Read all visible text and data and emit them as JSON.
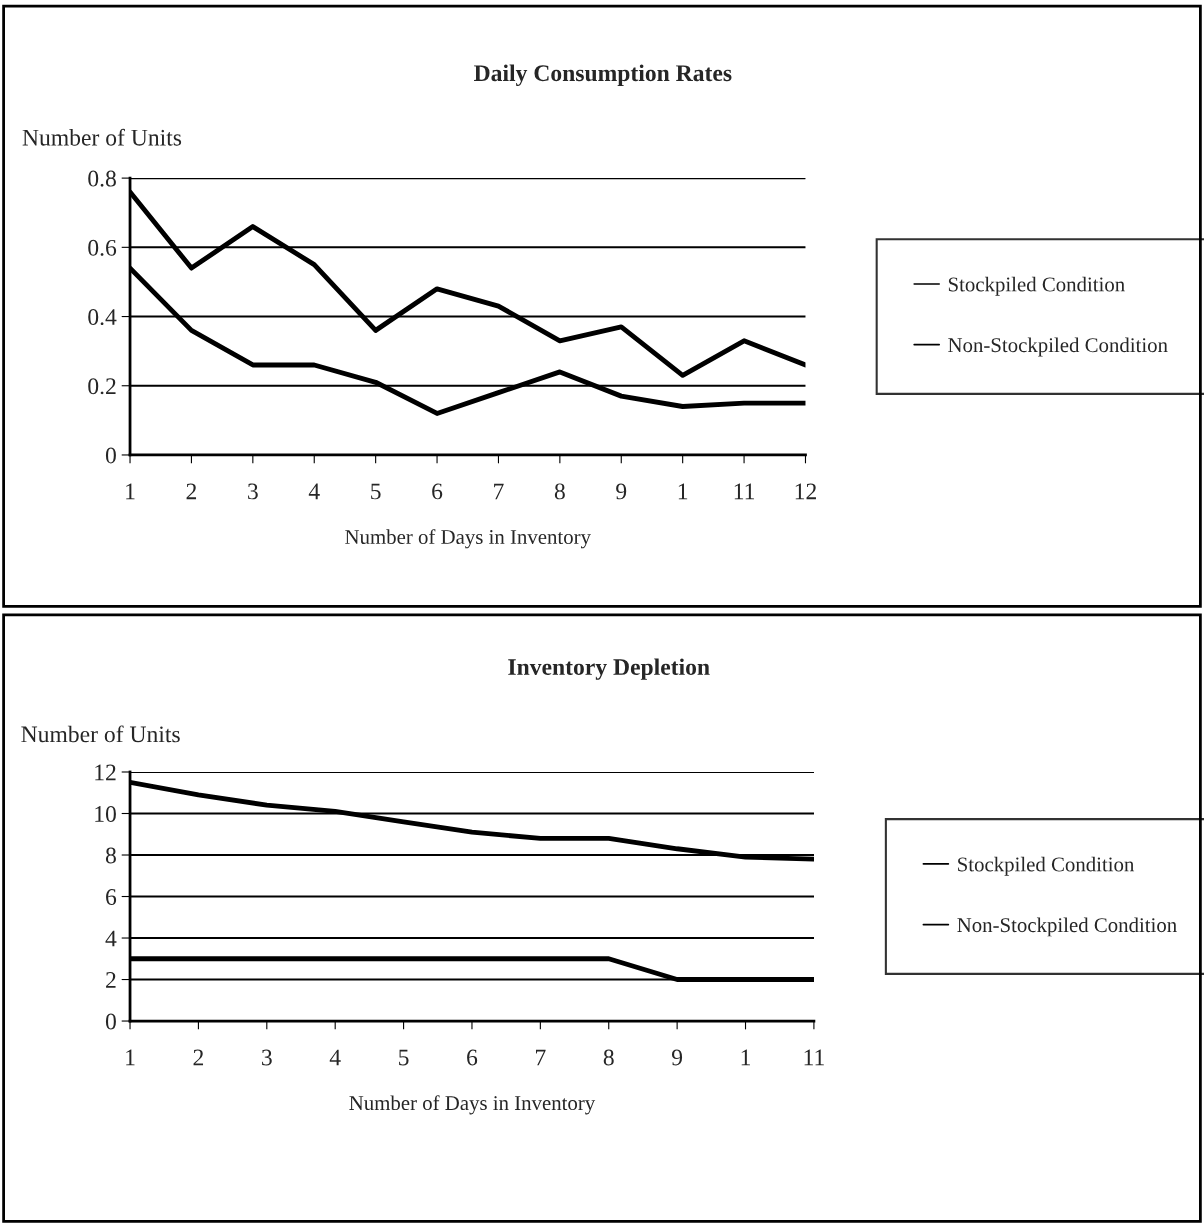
{
  "chart_data": [
    {
      "type": "line",
      "title": "Daily Consumption Rates",
      "ylabel": "Number of Units",
      "xlabel": "Number of Days in Inventory",
      "categories": [
        "1",
        "2",
        "3",
        "4",
        "5",
        "6",
        "7",
        "8",
        "9",
        "1",
        "11",
        "12"
      ],
      "series": [
        {
          "name": "Stockpiled Condition",
          "color": "#000000",
          "values": [
            0.76,
            0.54,
            0.66,
            0.55,
            0.36,
            0.48,
            0.43,
            0.33,
            0.37,
            0.23,
            0.33,
            0.26
          ]
        },
        {
          "name": "Non-Stockpiled Condition",
          "color": "#000000",
          "values": [
            0.54,
            0.36,
            0.26,
            0.26,
            0.21,
            0.12,
            0.18,
            0.24,
            0.17,
            0.14,
            0.15,
            0.15
          ]
        }
      ],
      "ylim": [
        0,
        0.8
      ],
      "yticks": [
        0,
        0.2,
        0.4,
        0.6,
        0.8
      ],
      "grid": "y",
      "legend": "right",
      "marker": "none",
      "line_style": "solid"
    },
    {
      "type": "line",
      "title": "Inventory Depletion",
      "ylabel": "Number of Units",
      "xlabel": "Number of Days in Inventory",
      "categories": [
        "1",
        "2",
        "3",
        "4",
        "5",
        "6",
        "7",
        "8",
        "9",
        "1",
        "11"
      ],
      "series": [
        {
          "name": "Stockpiled Condition",
          "color": "#000000",
          "values": [
            11.5,
            10.9,
            10.4,
            10.1,
            9.6,
            9.1,
            8.8,
            8.8,
            8.3,
            7.9,
            7.8
          ]
        },
        {
          "name": "Non-Stockpiled Condition",
          "color": "#000000",
          "values": [
            3,
            3,
            3,
            3,
            3,
            3,
            3,
            3,
            2,
            2,
            2
          ]
        }
      ],
      "ylim": [
        0,
        12
      ],
      "yticks": [
        0,
        2,
        4,
        6,
        8,
        10,
        12
      ],
      "grid": "y",
      "legend": "right",
      "marker": "none",
      "line_style": "solid"
    }
  ]
}
